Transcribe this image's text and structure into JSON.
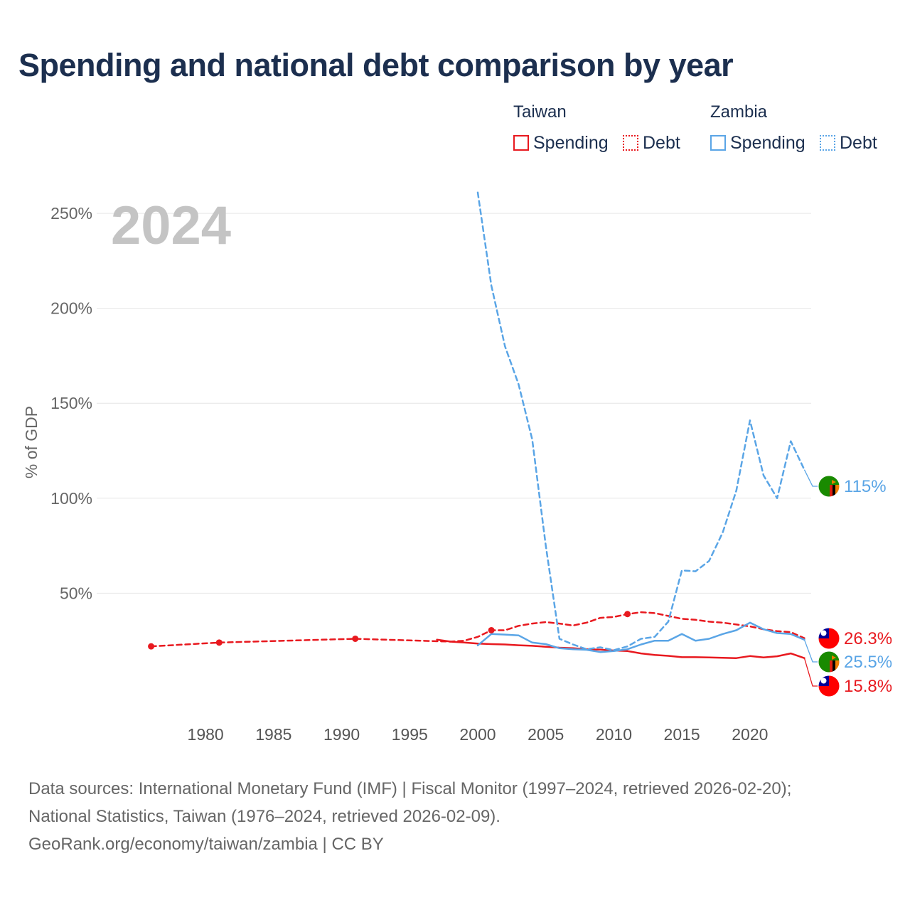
{
  "title": "Spending and national debt comparison by year",
  "legend": {
    "groups": [
      {
        "country": "Taiwan",
        "color": "#e8191f",
        "items": [
          {
            "label": "Spending",
            "style": "solid"
          },
          {
            "label": "Debt",
            "style": "dotted"
          }
        ]
      },
      {
        "country": "Zambia",
        "color": "#5aa5e6",
        "items": [
          {
            "label": "Spending",
            "style": "solid"
          },
          {
            "label": "Debt",
            "style": "dotted"
          }
        ]
      }
    ]
  },
  "chart_data": {
    "type": "line",
    "year_label": "2024",
    "ylabel": "% of GDP",
    "xlabel": "",
    "xlim": [
      1972,
      2024.5
    ],
    "ylim": [
      -12,
      265
    ],
    "yticks": [
      50,
      100,
      150,
      200,
      250
    ],
    "ytick_labels": [
      "50%",
      "100%",
      "150%",
      "200%",
      "250%"
    ],
    "xticks": [
      1980,
      1985,
      1990,
      1995,
      2000,
      2005,
      2010,
      2015,
      2020
    ],
    "xtick_labels": [
      "1980",
      "1985",
      "1990",
      "1995",
      "2000",
      "2005",
      "2010",
      "2015",
      "2020"
    ],
    "grid": true,
    "series": [
      {
        "name": "Taiwan Spending",
        "country": "Taiwan",
        "kind": "spending",
        "color": "#e8191f",
        "dash": "solid",
        "x": [
          1997,
          1998,
          1999,
          2000,
          2001,
          2002,
          2003,
          2004,
          2005,
          2006,
          2007,
          2008,
          2009,
          2010,
          2011,
          2012,
          2013,
          2014,
          2015,
          2016,
          2017,
          2018,
          2019,
          2020,
          2021,
          2022,
          2023,
          2024
        ],
        "y": [
          25.5,
          24.5,
          24,
          23.5,
          23.2,
          23,
          22.6,
          22.3,
          21.8,
          21.3,
          21,
          20.5,
          20.3,
          19.8,
          19.5,
          18.3,
          17.5,
          17,
          16.3,
          16.3,
          16.2,
          16,
          15.8,
          16.9,
          16.2,
          16.8,
          18.3,
          15.8
        ]
      },
      {
        "name": "Taiwan Debt",
        "country": "Taiwan",
        "kind": "debt",
        "color": "#e8191f",
        "dash": "dashed",
        "x": [
          1976,
          1981,
          1991,
          1998,
          1999,
          2000,
          2001,
          2002,
          2003,
          2004,
          2005,
          2006,
          2007,
          2008,
          2009,
          2010,
          2011,
          2012,
          2013,
          2014,
          2015,
          2016,
          2017,
          2018,
          2019,
          2020,
          2021,
          2022,
          2023,
          2024
        ],
        "y": [
          22,
          24,
          26,
          24.5,
          25,
          27,
          30.5,
          30.5,
          32.8,
          34,
          34.8,
          34,
          33,
          34.5,
          37,
          37.5,
          39,
          40,
          39.5,
          38,
          36.5,
          36,
          35,
          34.5,
          33.5,
          32.5,
          31,
          30,
          29.5,
          26.3
        ],
        "markers": [
          1976,
          1981,
          1991,
          2001,
          2011
        ]
      },
      {
        "name": "Zambia Spending",
        "country": "Zambia",
        "kind": "spending",
        "color": "#5aa5e6",
        "dash": "solid",
        "x": [
          2000,
          2001,
          2002,
          2003,
          2004,
          2005,
          2006,
          2007,
          2008,
          2009,
          2010,
          2011,
          2012,
          2013,
          2014,
          2015,
          2016,
          2017,
          2018,
          2019,
          2020,
          2021,
          2022,
          2023,
          2024
        ],
        "y": [
          22.5,
          28.5,
          28.2,
          27.8,
          24,
          23.2,
          21,
          20.5,
          20.2,
          19,
          19.5,
          20.5,
          23,
          25,
          25,
          28.5,
          25,
          26,
          28.5,
          30.5,
          34.5,
          31,
          29,
          28.5,
          25.5
        ]
      },
      {
        "name": "Zambia Debt",
        "country": "Zambia",
        "kind": "debt",
        "color": "#5aa5e6",
        "dash": "dashed",
        "x": [
          2000,
          2001,
          2002,
          2003,
          2004,
          2005,
          2006,
          2007,
          2008,
          2009,
          2010,
          2011,
          2012,
          2013,
          2014,
          2015,
          2016,
          2017,
          2018,
          2019,
          2020,
          2021,
          2022,
          2023,
          2024
        ],
        "y": [
          261,
          212,
          180,
          160,
          131,
          75,
          26,
          23,
          20.5,
          21.5,
          20,
          22,
          26,
          27,
          35,
          62,
          61.5,
          67,
          82,
          104,
          141,
          112,
          100,
          130,
          115
        ]
      }
    ],
    "end_labels": [
      {
        "series": "Zambia Debt",
        "value": 115,
        "label": "115%",
        "color": "#5aa5e6",
        "flag": "zambia-flag"
      },
      {
        "series": "Taiwan Debt",
        "value": 26.3,
        "label": "26.3%",
        "color": "#e8191f",
        "flag": "taiwan-flag"
      },
      {
        "series": "Zambia Spending",
        "value": 25.5,
        "label": "25.5%",
        "color": "#5aa5e6",
        "flag": "zambia-flag"
      },
      {
        "series": "Taiwan Spending",
        "value": 15.8,
        "label": "15.8%",
        "color": "#e8191f",
        "flag": "taiwan-flag"
      }
    ]
  },
  "footer": {
    "line1": "Data sources: International Monetary Fund (IMF) | Fiscal Monitor (1997–2024, retrieved 2026-02-20);",
    "line2": "National Statistics, Taiwan (1976–2024, retrieved 2026-02-09).",
    "line3": "GeoRank.org/economy/taiwan/zambia | CC BY"
  }
}
